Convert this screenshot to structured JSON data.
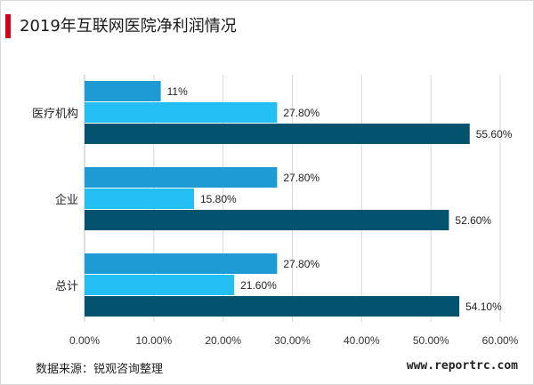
{
  "title": "2019年互联网医院净利润情况",
  "source": "数据来源：锐观咨询整理",
  "website": "www.reportrc.com",
  "colors": {
    "accent": "#d0021b",
    "series": [
      "#1d9bd4",
      "#23bff2",
      "#03536e"
    ]
  },
  "chart_data": {
    "type": "bar",
    "orientation": "horizontal",
    "title": "2019年互联网医院净利润情况",
    "categories": [
      "医疗机构",
      "企业",
      "总计"
    ],
    "series": [
      {
        "values": [
          11,
          27.8,
          27.8
        ],
        "labels": [
          "11%",
          "27.80%",
          "27.80%"
        ]
      },
      {
        "values": [
          27.8,
          15.8,
          21.6
        ],
        "labels": [
          "27.80%",
          "15.80%",
          "21.60%"
        ]
      },
      {
        "values": [
          55.6,
          52.6,
          54.1
        ],
        "labels": [
          "55.60%",
          "52.60%",
          "54.10%"
        ]
      }
    ],
    "xlim": [
      0,
      60
    ],
    "xticks": [
      "0.00%",
      "10.00%",
      "20.00%",
      "30.00%",
      "40.00%",
      "50.00%",
      "60.00%"
    ],
    "grid": true,
    "legend": "none"
  }
}
